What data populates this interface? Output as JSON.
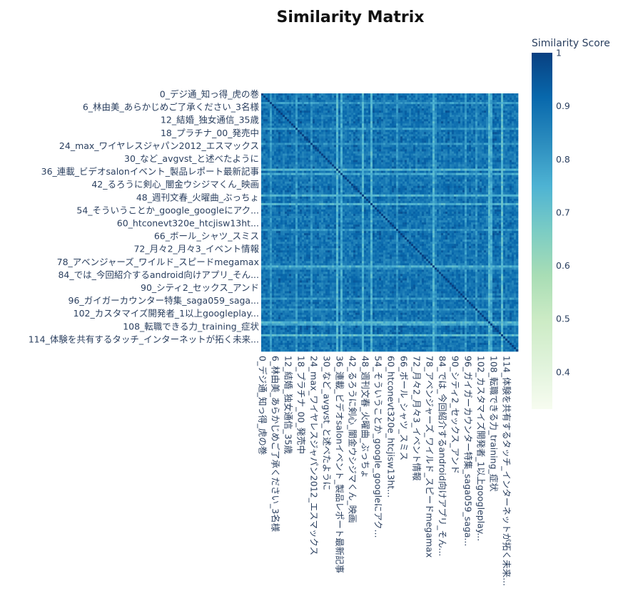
{
  "chart_data": {
    "type": "heatmap",
    "title": "Similarity Matrix",
    "n": 120,
    "diagonal_value": 1.0,
    "value_range_hint": [
      0.55,
      0.98
    ],
    "y_tick_labels": [
      "0_デジ通_知っ得_虎の巻",
      "6_林由美_あらかじめご了承ください_3名様",
      "12_結婚_独女通信_35歳",
      "18_プラチナ_00_発売中",
      "24_max_ワイヤレスジャパン2012_エスマックス",
      "30_など_avgvst_と述べたように",
      "36_連載_ビデオsalonイベント_製品レポート最新記事",
      "42_るろうに剣心_闇金ウシジマくん_映画",
      "48_週刊文春_火曜曲_ぶっちょ",
      "54_そういうことか_google_googleにアク...",
      "60_htconevt320e_htcjisw13ht...",
      "66_ボール_シャツ_スミス",
      "72_月々2_月々3_イベント情報",
      "78_アベンジャーズ_ワイルド_スピードmegamax",
      "84_では_今回紹介するandroid向けアプリ_そん...",
      "90_シティ2_セックス_アンド",
      "96_ガイガーカウンター特集_saga059_saga...",
      "102_カスタマイズ開発者_1以上googleplay...",
      "108_転職できる力_training_症状",
      "114_体験を共有するタッチ_インターネットが拓く未来..."
    ],
    "x_tick_labels": [
      "0_デジ通_知っ得_虎の巻",
      "6_林由美_あらかじめご了承ください_3名様",
      "12_結婚_独女通信_35歳",
      "18_プラチナ_00_発売中",
      "24_max_ワイヤレスジャパン2012_エスマックス",
      "30_など_avgvst_と述べたように",
      "36_連載_ビデオsalonイベント_製品レポート最新記事",
      "42_るろうに剣心_闇金ウシジマくん_映画",
      "48_週刊文春_火曜曲_ぶっちょ",
      "54_そういうことか_google_googleにアク...",
      "60_htconevt320e_htcjisw13ht...",
      "66_ボール_シャツ_スミス",
      "72_月々2_月々3_イベント情報",
      "78_アベンジャーズ_ワイルド_スピードmegamax",
      "84_では_今回紹介するandroid向けアプリ_そん...",
      "90_シティ2_セックス_アンド",
      "96_ガイガーカウンター特集_saga059_saga...",
      "102_カスタマイズ開発者_1以上googleplay...",
      "108_転職できる力_training_症状",
      "114_体験を共有するタッチ_インターネットが拓く未来..."
    ],
    "colorbar": {
      "title": "Similarity Score",
      "range": [
        0.33,
        1.0
      ],
      "ticks": [
        0.4,
        0.5,
        0.6,
        0.7,
        0.8,
        0.9,
        1
      ],
      "tick_labels": [
        "0.4",
        "0.5",
        "0.6",
        "0.7",
        "0.8",
        "0.9",
        "1"
      ],
      "colorscale": [
        "#f7fcf0",
        "#e0f3db",
        "#ccebc5",
        "#a8ddb5",
        "#7bccc4",
        "#4eb3d3",
        "#2b8cbe",
        "#0868ac",
        "#084081"
      ]
    }
  }
}
